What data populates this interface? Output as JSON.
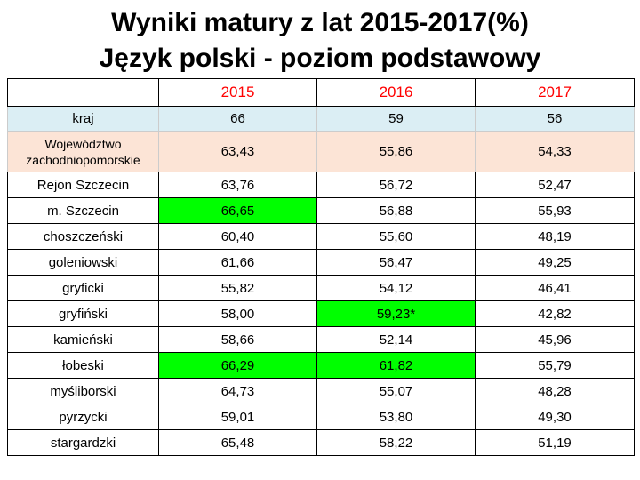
{
  "title": {
    "line1": "Wyniki matury z lat 2015-2017(%)",
    "line2": "Język polski - poziom podstawowy"
  },
  "colors": {
    "header_text": "#ff0000",
    "highlight": "#00ff00",
    "kraj_row": "#dbeef4",
    "wojewodztwo_row": "#fce4d6"
  },
  "table": {
    "corner": "",
    "years": [
      "2015",
      "2016",
      "2017"
    ],
    "rows": [
      {
        "name": "kraj",
        "v": [
          "66",
          "59",
          "56"
        ]
      },
      {
        "name": "Województwo zachodniopomorskie",
        "v": [
          "63,43",
          "55,86",
          "54,33"
        ]
      },
      {
        "name": "Rejon Szczecin",
        "v": [
          "63,76",
          "56,72",
          "52,47"
        ]
      },
      {
        "name": "m. Szczecin",
        "v": [
          "66,65",
          "56,88",
          "55,93"
        ]
      },
      {
        "name": "choszczeński",
        "v": [
          "60,40",
          "55,60",
          "48,19"
        ]
      },
      {
        "name": "goleniowski",
        "v": [
          "61,66",
          "56,47",
          "49,25"
        ]
      },
      {
        "name": "gryficki",
        "v": [
          "55,82",
          "54,12",
          "46,41"
        ]
      },
      {
        "name": "gryfiński",
        "v": [
          "58,00",
          "59,23*",
          "42,82"
        ]
      },
      {
        "name": "kamieński",
        "v": [
          "58,66",
          "52,14",
          "45,96"
        ]
      },
      {
        "name": "łobeski",
        "v": [
          "66,29",
          "61,82",
          "55,79"
        ]
      },
      {
        "name": "myśliborski",
        "v": [
          "64,73",
          "55,07",
          "48,28"
        ]
      },
      {
        "name": "pyrzycki",
        "v": [
          "59,01",
          "53,80",
          "49,30"
        ]
      },
      {
        "name": "stargardzki",
        "v": [
          "65,48",
          "58,22",
          "51,19"
        ]
      }
    ]
  }
}
